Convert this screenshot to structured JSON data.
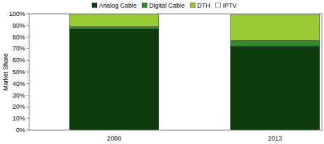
{
  "chart_data": {
    "type": "bar",
    "stacked": true,
    "y_label": "Market Share",
    "categories": [
      "2008",
      "2013"
    ],
    "series": [
      {
        "name": "Analog Cable",
        "color": "#0c3b0c",
        "values": [
          87,
          72
        ]
      },
      {
        "name": "Digital Cable",
        "color": "#2e8b2e",
        "values": [
          2,
          5
        ]
      },
      {
        "name": "DTH",
        "color": "#99cc33",
        "values": [
          11,
          22
        ]
      },
      {
        "name": "IPTV",
        "color": "#ffffff",
        "values": [
          0,
          1
        ]
      }
    ],
    "ylim": [
      0,
      100
    ],
    "yticks": [
      {
        "value": 0,
        "label": "0%"
      },
      {
        "value": 10,
        "label": "10%"
      },
      {
        "value": 20,
        "label": "20%"
      },
      {
        "value": 30,
        "label": "30%"
      },
      {
        "value": 40,
        "label": "40%"
      },
      {
        "value": 50,
        "label": "50%"
      },
      {
        "value": 60,
        "label": "60%"
      },
      {
        "value": 70,
        "label": "70%"
      },
      {
        "value": 80,
        "label": "80%"
      },
      {
        "value": 90,
        "label": "90%"
      },
      {
        "value": 100,
        "label": "100%"
      }
    ],
    "grid": false,
    "legend": "top"
  }
}
